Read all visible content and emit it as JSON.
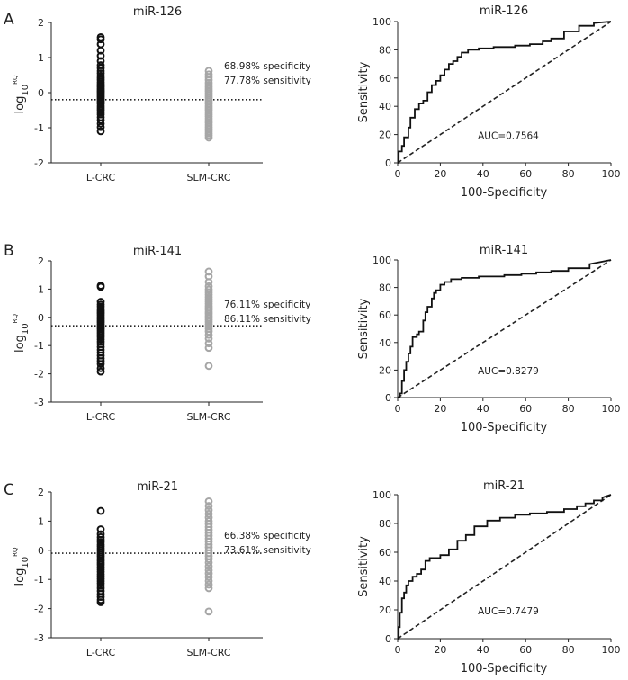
{
  "figure": {
    "panels": [
      {
        "label": "A",
        "scatter_tick_labels": [
          "2",
          "1",
          "0",
          "-1",
          "-2"
        ],
        "roc_y_tick_labels": [
          "0",
          "20",
          "40",
          "60",
          "80",
          "100"
        ],
        "roc_x_tick_labels": [
          "0",
          "20",
          "40",
          "60",
          "80",
          "100"
        ],
        "ylabel_main": "log",
        "ylabel_sub": "10",
        "ylabel_sup": "RQ",
        "roc_ylabel": "Sensitivity",
        "roc_xlabel": "100-Specificity",
        "specificity_text": "68.98% specificity",
        "sensitivity_text": "77.78% sensitivity",
        "auc_text": "AUC=0.7564"
      },
      {
        "label": "B",
        "scatter_tick_labels": [
          "2",
          "1",
          "0",
          "-1",
          "-2",
          "-3"
        ],
        "roc_y_tick_labels": [
          "0",
          "20",
          "40",
          "60",
          "80",
          "100"
        ],
        "roc_x_tick_labels": [
          "0",
          "20",
          "40",
          "60",
          "80",
          "100"
        ],
        "ylabel_main": "log",
        "ylabel_sub": "10",
        "ylabel_sup": "RQ",
        "roc_ylabel": "Sensitivity",
        "roc_xlabel": "100-Specificity",
        "specificity_text": "76.11% specificity",
        "sensitivity_text": "86.11% sensitivity",
        "auc_text": "AUC=0.8279"
      },
      {
        "label": "C",
        "scatter_tick_labels": [
          "2",
          "1",
          "0",
          "-1",
          "-2",
          "-3"
        ],
        "roc_y_tick_labels": [
          "0",
          "20",
          "40",
          "60",
          "80",
          "100"
        ],
        "roc_x_tick_labels": [
          "0",
          "20",
          "40",
          "60",
          "80",
          "100"
        ],
        "ylabel_main": "log",
        "ylabel_sub": "10",
        "ylabel_sup": "RQ",
        "roc_ylabel": "Sensitivity",
        "roc_xlabel": "100-Specificity",
        "specificity_text": "66.38% specificity",
        "sensitivity_text": "73.61% sensitivity",
        "auc_text": "AUC=0.7479"
      }
    ]
  },
  "colors": {
    "l_crc": "#111111",
    "slm_crc": "#a6a6a6",
    "axis": "#222222"
  },
  "chart_data": [
    {
      "type": "scatter",
      "panel": "A",
      "title": "miR-126",
      "categories": [
        "L-CRC",
        "SLM-CRC"
      ],
      "ylim": [
        -2,
        2
      ],
      "cutoff": -0.2,
      "series": [
        {
          "name": "L-CRC",
          "values": [
            1.58,
            1.52,
            1.38,
            1.2,
            1.05,
            0.9,
            0.78,
            0.7,
            0.62,
            0.55,
            0.48,
            0.42,
            0.36,
            0.3,
            0.25,
            0.2,
            0.16,
            0.12,
            0.08,
            0.04,
            0.0,
            -0.04,
            -0.08,
            -0.12,
            -0.16,
            -0.2,
            -0.24,
            -0.28,
            -0.32,
            -0.38,
            -0.44,
            -0.5,
            -0.56,
            -0.62,
            -0.7,
            -0.78,
            -0.88,
            -0.98,
            -1.1
          ]
        },
        {
          "name": "SLM-CRC",
          "values": [
            0.62,
            0.52,
            0.44,
            0.36,
            0.28,
            0.22,
            0.16,
            0.1,
            0.04,
            -0.02,
            -0.08,
            -0.14,
            -0.2,
            -0.26,
            -0.32,
            -0.38,
            -0.44,
            -0.5,
            -0.56,
            -0.62,
            -0.68,
            -0.74,
            -0.8,
            -0.86,
            -0.92,
            -0.98,
            -1.04,
            -1.1,
            -1.16,
            -1.22,
            -1.28
          ]
        }
      ]
    },
    {
      "type": "line",
      "panel": "A",
      "title": "miR-126",
      "xlabel": "100-Specificity",
      "ylabel": "Sensitivity",
      "xlim": [
        0,
        100
      ],
      "ylim": [
        0,
        100
      ],
      "auc": 0.7564,
      "x": [
        0,
        0.5,
        0.5,
        2,
        2,
        3,
        3,
        5,
        5,
        6,
        6,
        8,
        8,
        10,
        10,
        12,
        12,
        14,
        14,
        16,
        16,
        18,
        18,
        20,
        20,
        22,
        22,
        24,
        24,
        26,
        26,
        28,
        28,
        30,
        30,
        33,
        33,
        38,
        38,
        45,
        45,
        55,
        55,
        62,
        62,
        68,
        68,
        72,
        72,
        78,
        78,
        85,
        85,
        92,
        92,
        100
      ],
      "y": [
        0,
        0,
        8,
        8,
        12,
        12,
        18,
        18,
        25,
        25,
        32,
        32,
        38,
        38,
        42,
        42,
        44,
        44,
        50,
        50,
        55,
        55,
        58,
        58,
        62,
        62,
        66,
        66,
        70,
        70,
        72,
        72,
        75,
        75,
        78,
        78,
        80,
        80,
        81,
        81,
        82,
        82,
        83,
        83,
        84,
        84,
        86,
        86,
        88,
        88,
        93,
        93,
        97,
        97,
        99,
        100
      ]
    },
    {
      "type": "scatter",
      "panel": "B",
      "title": "miR-141",
      "categories": [
        "L-CRC",
        "SLM-CRC"
      ],
      "ylim": [
        -3,
        2
      ],
      "cutoff": -0.3,
      "series": [
        {
          "name": "L-CRC",
          "values": [
            1.12,
            1.08,
            0.55,
            0.45,
            0.38,
            0.3,
            0.24,
            0.18,
            0.12,
            0.06,
            0.0,
            -0.06,
            -0.12,
            -0.18,
            -0.24,
            -0.3,
            -0.36,
            -0.42,
            -0.48,
            -0.55,
            -0.62,
            -0.7,
            -0.78,
            -0.86,
            -0.95,
            -1.05,
            -1.15,
            -1.25,
            -1.35,
            -1.45,
            -1.55,
            -1.65,
            -1.8,
            -1.92
          ]
        },
        {
          "name": "SLM-CRC",
          "values": [
            1.62,
            1.45,
            1.25,
            1.1,
            0.98,
            0.88,
            0.8,
            0.72,
            0.64,
            0.56,
            0.48,
            0.4,
            0.33,
            0.26,
            0.19,
            0.12,
            0.05,
            -0.02,
            -0.09,
            -0.16,
            -0.24,
            -0.32,
            -0.4,
            -0.5,
            -0.62,
            -0.75,
            -0.92,
            -1.08,
            -1.72
          ]
        }
      ]
    },
    {
      "type": "line",
      "panel": "B",
      "title": "miR-141",
      "xlabel": "100-Specificity",
      "ylabel": "Sensitivity",
      "xlim": [
        0,
        100
      ],
      "ylim": [
        0,
        100
      ],
      "auc": 0.8279,
      "x": [
        0,
        1,
        1,
        2,
        2,
        3,
        3,
        4,
        4,
        5,
        5,
        6,
        6,
        7,
        7,
        9,
        9,
        10,
        10,
        12,
        12,
        13,
        13,
        14,
        14,
        16,
        16,
        17,
        17,
        18,
        18,
        20,
        20,
        22,
        22,
        25,
        25,
        30,
        30,
        38,
        38,
        50,
        50,
        58,
        58,
        65,
        65,
        72,
        72,
        80,
        80,
        90,
        90,
        100
      ],
      "y": [
        0,
        0,
        3,
        3,
        12,
        12,
        20,
        20,
        26,
        26,
        32,
        32,
        37,
        37,
        44,
        44,
        46,
        46,
        48,
        48,
        56,
        56,
        62,
        62,
        66,
        66,
        72,
        72,
        76,
        76,
        78,
        78,
        82,
        82,
        84,
        84,
        86,
        86,
        87,
        87,
        88,
        88,
        89,
        89,
        90,
        90,
        91,
        91,
        92,
        92,
        94,
        94,
        97,
        100
      ]
    },
    {
      "type": "scatter",
      "panel": "C",
      "title": "miR-21",
      "categories": [
        "L-CRC",
        "SLM-CRC"
      ],
      "ylim": [
        -3,
        2
      ],
      "cutoff": -0.1,
      "series": [
        {
          "name": "L-CRC",
          "values": [
            1.35,
            0.72,
            0.55,
            0.45,
            0.36,
            0.28,
            0.2,
            0.13,
            0.06,
            -0.01,
            -0.08,
            -0.15,
            -0.22,
            -0.29,
            -0.36,
            -0.43,
            -0.5,
            -0.58,
            -0.66,
            -0.74,
            -0.82,
            -0.9,
            -0.98,
            -1.06,
            -1.14,
            -1.22,
            -1.3,
            -1.4,
            -1.5,
            -1.6,
            -1.7,
            -1.78
          ]
        },
        {
          "name": "SLM-CRC",
          "values": [
            1.68,
            1.52,
            1.38,
            1.25,
            1.12,
            1.0,
            0.9,
            0.8,
            0.7,
            0.6,
            0.5,
            0.4,
            0.3,
            0.2,
            0.1,
            0.0,
            -0.1,
            -0.2,
            -0.3,
            -0.42,
            -0.55,
            -0.68,
            -0.8,
            -0.92,
            -1.05,
            -1.18,
            -1.3,
            -2.1
          ]
        }
      ]
    },
    {
      "type": "line",
      "panel": "C",
      "title": "miR-21",
      "xlabel": "100-Specificity",
      "ylabel": "Sensitivity",
      "xlim": [
        0,
        100
      ],
      "ylim": [
        0,
        100
      ],
      "auc": 0.7479,
      "x": [
        0,
        0.5,
        0.5,
        1,
        1,
        2,
        2,
        3,
        3,
        4,
        4,
        5,
        5,
        7,
        7,
        9,
        9,
        11,
        11,
        13,
        13,
        15,
        15,
        20,
        20,
        24,
        24,
        28,
        28,
        32,
        32,
        36,
        36,
        42,
        42,
        48,
        48,
        55,
        55,
        62,
        62,
        70,
        70,
        78,
        78,
        84,
        84,
        88,
        88,
        92,
        92,
        96,
        96,
        100
      ],
      "y": [
        0,
        0,
        8,
        8,
        18,
        18,
        28,
        28,
        32,
        32,
        37,
        37,
        40,
        40,
        43,
        43,
        45,
        45,
        48,
        48,
        54,
        54,
        56,
        56,
        58,
        58,
        62,
        62,
        68,
        68,
        72,
        72,
        78,
        78,
        82,
        82,
        84,
        84,
        86,
        86,
        87,
        87,
        88,
        88,
        90,
        90,
        92,
        92,
        94,
        94,
        96,
        96,
        98,
        100
      ]
    }
  ]
}
